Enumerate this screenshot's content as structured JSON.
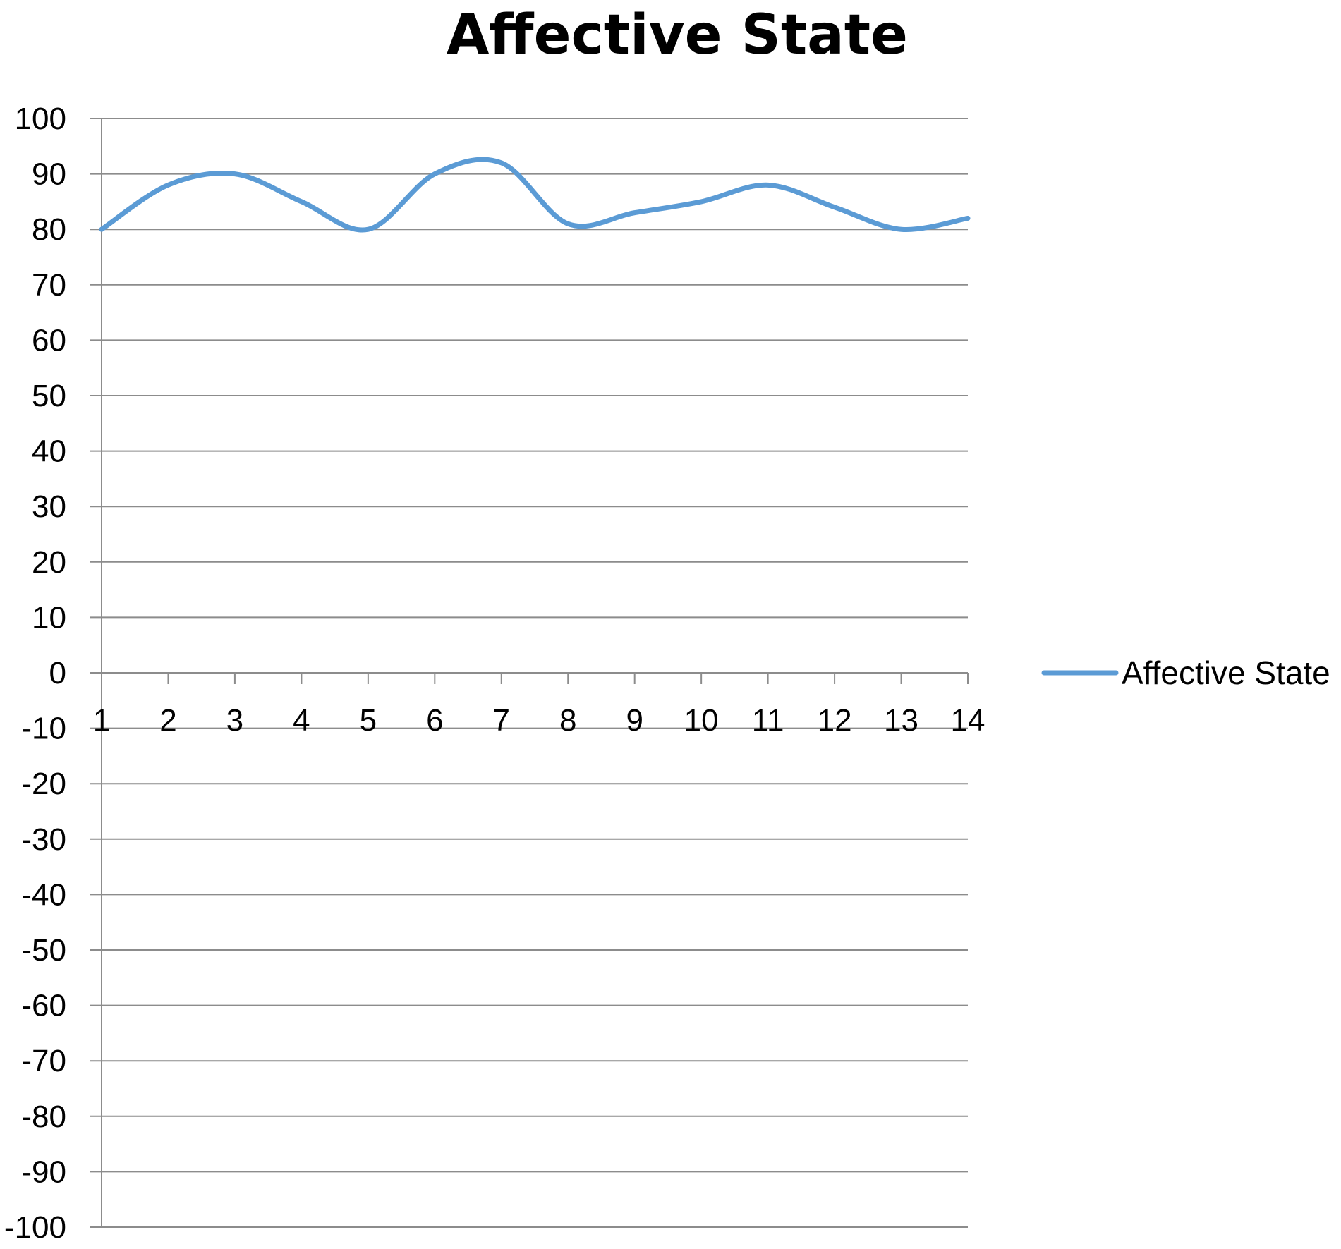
{
  "chart_data": {
    "type": "line",
    "title": "Affective State",
    "xlabel": "",
    "ylabel": "",
    "categories": [
      "1",
      "2",
      "3",
      "4",
      "5",
      "6",
      "7",
      "8",
      "9",
      "10",
      "11",
      "12",
      "13",
      "14"
    ],
    "series": [
      {
        "name": "Affective State",
        "color": "#5b9bd5",
        "values": [
          80,
          88,
          90,
          85,
          80,
          90,
          92,
          81,
          83,
          85,
          88,
          84,
          80,
          82
        ]
      }
    ],
    "ylim": [
      -100,
      100
    ],
    "yticks": [
      100,
      90,
      80,
      70,
      60,
      50,
      40,
      30,
      20,
      10,
      0,
      -10,
      -20,
      -30,
      -40,
      -50,
      -60,
      -70,
      -80,
      -90,
      -100
    ],
    "grid": true,
    "legend_position": "right"
  }
}
